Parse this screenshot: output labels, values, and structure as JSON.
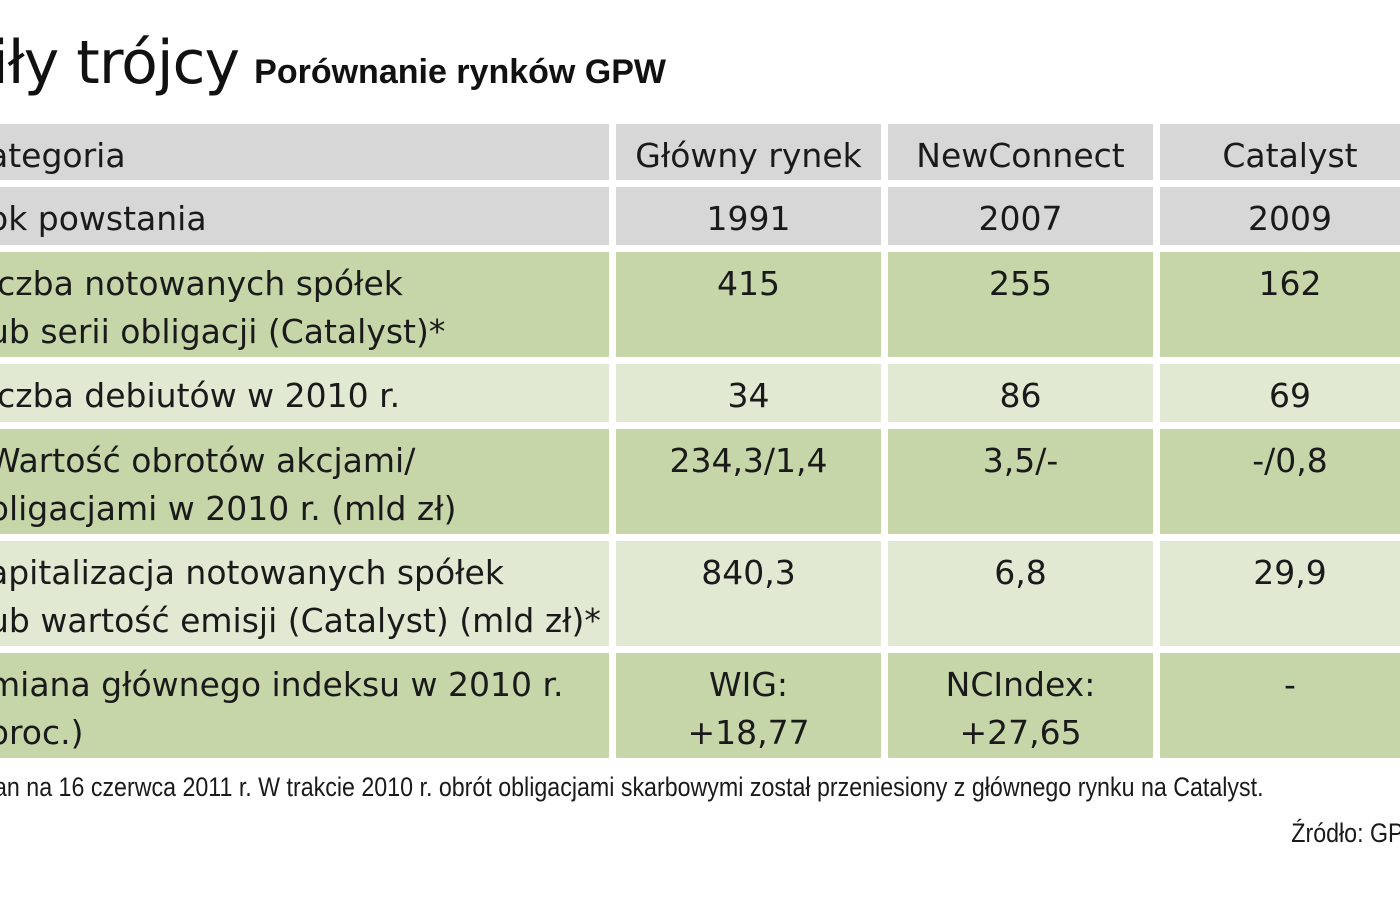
{
  "chart_data": {
    "type": "table",
    "title": "iły trójcy",
    "subtitle": "Porównanie rynków GPW",
    "columns": [
      "ategoria",
      "Główny rynek",
      "NewConnect",
      "Catalyst"
    ],
    "rows": [
      {
        "label": "ok powstania",
        "values": [
          "1991",
          "2007",
          "2009"
        ]
      },
      {
        "label": "iczba notowanych spółek\nub serii obligacji (Catalyst)*",
        "values": [
          "415",
          "255",
          "162"
        ]
      },
      {
        "label": "iczba debiutów w 2010 r.",
        "values": [
          "34",
          "86",
          "69"
        ]
      },
      {
        "label": "Wartość obrotów akcjami/\nbligacjami w 2010 r. (mld zł)",
        "values": [
          "234,3/1,4",
          "3,5/-",
          "-/0,8"
        ]
      },
      {
        "label": "apitalizacja notowanych spółek\nub wartość emisji (Catalyst) (mld zł)*",
        "values": [
          "840,3",
          "6,8",
          "29,9"
        ]
      },
      {
        "label": "miana głównego indeksu w 2010 r.\nproc.)",
        "values": [
          "WIG:\n+18,77",
          "NCIndex:\n+27,65",
          "-"
        ]
      }
    ],
    "footnote": "an na 16 czerwca 2011 r. W trakcie 2010 r. obrót obligacjami skarbowymi został przeniesiony z głównego rynku na Catalyst.",
    "source": "Źródło: GP"
  },
  "colors": {
    "header_bg": "#d7d7d7",
    "green_dark": "#c6d6a9",
    "green_light": "#e1e9d2"
  }
}
